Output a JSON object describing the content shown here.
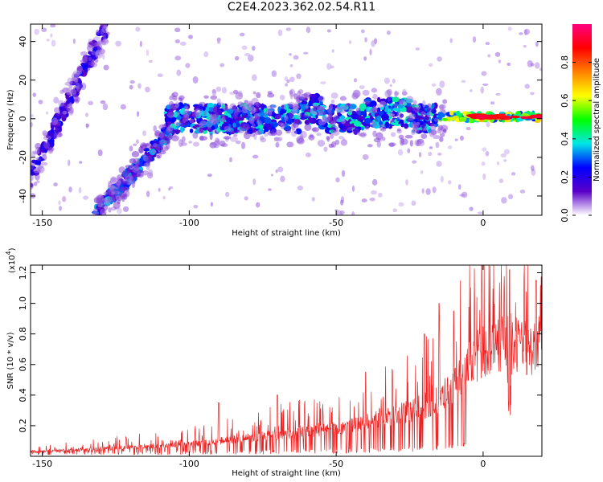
{
  "title": "C2E4.2023.362.02.54.R11",
  "chart_data": [
    {
      "type": "heatmap",
      "xlabel": "Height of straight line (km)",
      "ylabel": "Frequency (Hz)",
      "xlim": [
        -154,
        20
      ],
      "ylim": [
        -50,
        49
      ],
      "xticks": [
        -150,
        -100,
        -50,
        0
      ],
      "yticks": [
        -40,
        -20,
        0,
        20,
        40
      ],
      "colorbar": {
        "label": "Normalized spectral amplitude",
        "range": [
          0.0,
          1.0
        ],
        "ticks": [
          0.0,
          0.2,
          0.4,
          0.6,
          0.8
        ],
        "tick_labels": [
          "0.0",
          "0.2",
          "0.4",
          "0.6",
          "0.8"
        ],
        "colors": [
          "#ffffff",
          "#5a00c8",
          "#0000ff",
          "#00e6e6",
          "#00ff00",
          "#ffff00",
          "#ff8000",
          "#ff0000",
          "#ff0080"
        ]
      },
      "features": [
        {
          "name": "steep branch",
          "x_range": [
            -154,
            -130
          ],
          "freq_range": [
            -30,
            49
          ],
          "amplitude": 0.15
        },
        {
          "name": "rising branch",
          "x_range": [
            -132,
            -108
          ],
          "freq_range": [
            -50,
            -5
          ],
          "amplitude": 0.2
        },
        {
          "name": "near-zero band",
          "x_range": [
            -108,
            -20
          ],
          "freq_center": 0,
          "amplitude": 0.25
        },
        {
          "name": "strong tone",
          "x_range": [
            -15,
            20
          ],
          "freq_center": 1,
          "amplitude": 0.9
        }
      ]
    },
    {
      "type": "line",
      "xlabel": "Height of straight line (km)",
      "ylabel": "SNR (10 * v/v)",
      "yscale_label": "(x10",
      "yscale_exp": "4",
      "xlim": [
        -154,
        20
      ],
      "ylim": [
        0,
        1.25
      ],
      "xticks": [
        -150,
        -100,
        -50,
        0
      ],
      "yticks": [
        0.2,
        0.4,
        0.6,
        0.8,
        1.0,
        1.2
      ],
      "ytick_labels": [
        "0.2",
        "0.4",
        "0.6",
        "0.8",
        "1.0",
        "1.2"
      ],
      "color": "#ee2222",
      "x": [
        -154,
        -140,
        -130,
        -120,
        -110,
        -100,
        -90,
        -80,
        -70,
        -60,
        -50,
        -40,
        -30,
        -20,
        -15,
        -10,
        -5,
        0,
        5,
        8,
        9,
        10,
        15,
        18,
        20
      ],
      "y": [
        0.03,
        0.04,
        0.05,
        0.06,
        0.07,
        0.08,
        0.1,
        0.12,
        0.14,
        0.16,
        0.18,
        0.22,
        0.27,
        0.32,
        0.38,
        0.45,
        0.6,
        0.68,
        0.72,
        0.75,
        0.2,
        0.75,
        0.68,
        0.72,
        0.78
      ],
      "peaks": [
        [
          -90,
          0.35
        ],
        [
          -70,
          0.4
        ],
        [
          -40,
          0.55
        ],
        [
          -20,
          0.8
        ],
        [
          -15,
          1.0
        ],
        [
          -10,
          0.95
        ],
        [
          9,
          1.22
        ],
        [
          18,
          1.15
        ]
      ]
    }
  ]
}
